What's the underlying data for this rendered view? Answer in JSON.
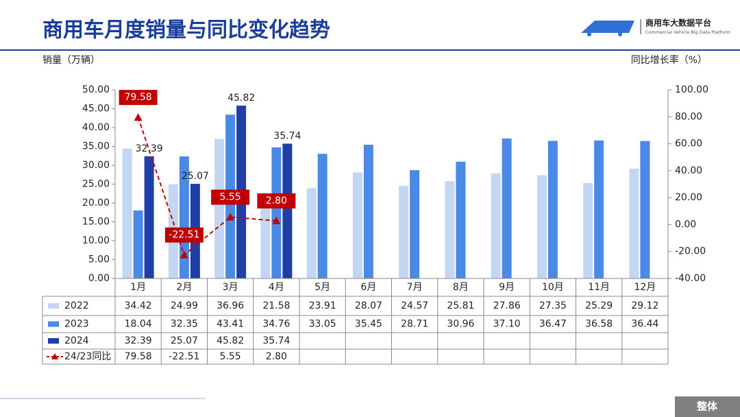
{
  "chart_data": {
    "type": "bar",
    "title": "商用车月度销量与同比变化趋势",
    "y_label": "销量（万辆）",
    "y2_label": "同比增长率（%）",
    "categories": [
      "1月",
      "2月",
      "3月",
      "4月",
      "5月",
      "6月",
      "7月",
      "8月",
      "9月",
      "10月",
      "11月",
      "12月"
    ],
    "series": [
      {
        "name": "2022",
        "color": "#c3d6f4",
        "values": [
          34.42,
          24.99,
          36.96,
          21.58,
          23.91,
          28.07,
          24.57,
          25.81,
          27.86,
          27.35,
          25.29,
          29.12
        ],
        "value_labels": [
          "34.42",
          "24.99",
          "36.96",
          "21.58",
          "23.91",
          "28.07",
          "24.57",
          "25.81",
          "27.86",
          "27.35",
          "25.29",
          "29.12"
        ]
      },
      {
        "name": "2023",
        "color": "#4a8ae4",
        "values": [
          18.04,
          32.35,
          43.41,
          34.76,
          33.05,
          35.45,
          28.71,
          30.96,
          37.1,
          36.47,
          36.58,
          36.44
        ],
        "value_labels": [
          "18.04",
          "32.35",
          "43.41",
          "34.76",
          "33.05",
          "35.45",
          "28.71",
          "30.96",
          "37.10",
          "36.47",
          "36.58",
          "36.44"
        ]
      },
      {
        "name": "2024",
        "color": "#1f3ea6",
        "values": [
          32.39,
          25.07,
          45.82,
          35.74,
          null,
          null,
          null,
          null,
          null,
          null,
          null,
          null
        ],
        "value_labels": [
          "32.39",
          "25.07",
          "45.82",
          "35.74",
          null,
          null,
          null,
          null,
          null,
          null,
          null,
          null
        ]
      },
      {
        "name": "24/23同比",
        "type": "line",
        "axis": "y2",
        "color": "#c00000",
        "values": [
          79.58,
          -22.51,
          5.55,
          2.8,
          null,
          null,
          null,
          null,
          null,
          null,
          null,
          null
        ],
        "value_labels": [
          "79.58",
          "-22.51",
          "5.55",
          "2.80",
          null,
          null,
          null,
          null,
          null,
          null,
          null,
          null
        ]
      }
    ],
    "ylim": [
      0,
      50
    ],
    "yticks": [
      {
        "value": 0,
        "label": "0.00"
      },
      {
        "value": 5,
        "label": "5.00"
      },
      {
        "value": 10,
        "label": "10.00"
      },
      {
        "value": 15,
        "label": "15.00"
      },
      {
        "value": 20,
        "label": "20.00"
      },
      {
        "value": 25,
        "label": "25.00"
      },
      {
        "value": 30,
        "label": "30.00"
      },
      {
        "value": 35,
        "label": "35.00"
      },
      {
        "value": 40,
        "label": "40.00"
      },
      {
        "value": 45,
        "label": "45.00"
      },
      {
        "value": 50,
        "label": "50.00"
      }
    ],
    "y2lim": [
      -40,
      100
    ],
    "y2ticks": [
      {
        "value": -40,
        "label": "-40.00"
      },
      {
        "value": -20,
        "label": "-20.00"
      },
      {
        "value": 0,
        "label": "0.00"
      },
      {
        "value": 20,
        "label": "20.00"
      },
      {
        "value": 40,
        "label": "40.00"
      },
      {
        "value": 60,
        "label": "60.00"
      },
      {
        "value": 80,
        "label": "80.00"
      },
      {
        "value": 100,
        "label": "100.00"
      }
    ]
  },
  "logo": {
    "name": "商用车大数据平台",
    "subtitle": "Commercial Vehicle Big Data Platform"
  },
  "footer": "整体"
}
